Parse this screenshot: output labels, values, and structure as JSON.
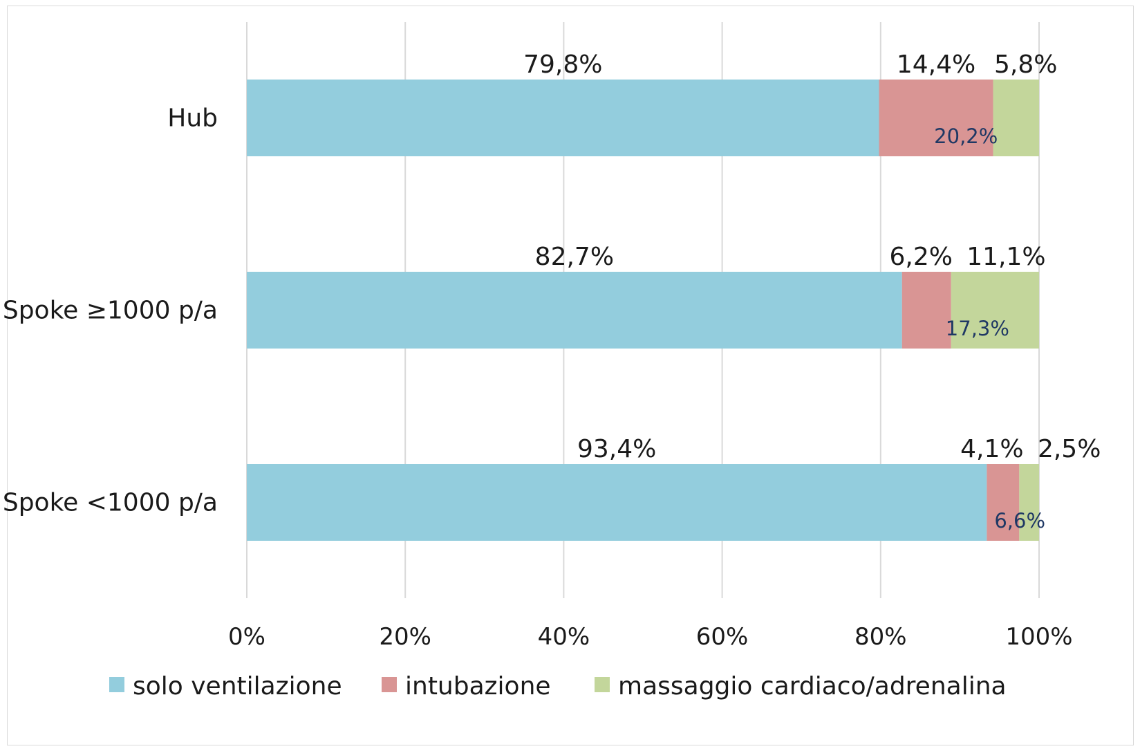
{
  "chart_data": {
    "type": "bar",
    "orientation": "horizontal",
    "stacked": true,
    "xlim": [
      0,
      100
    ],
    "x_ticks": [
      "0%",
      "20%",
      "40%",
      "60%",
      "80%",
      "100%"
    ],
    "grid": "vertical",
    "legend_position": "bottom",
    "categories": [
      "Hub",
      "Spoke ≥1000 p/a",
      "Spoke <1000 p/a"
    ],
    "series": [
      {
        "name": "solo ventilazione",
        "color": "#93CDDD",
        "values": [
          79.8,
          82.7,
          93.4
        ],
        "labels": [
          "79,8%",
          "82,7%",
          "93,4%"
        ]
      },
      {
        "name": "intubazione",
        "color": "#D99594",
        "values": [
          14.4,
          6.2,
          4.1
        ],
        "labels": [
          "14,4%",
          "6,2%",
          "4,1%"
        ]
      },
      {
        "name": "massaggio cardiaco/adrenalina",
        "color": "#C3D69B",
        "values": [
          5.8,
          11.1,
          2.5
        ],
        "labels": [
          "5,8%",
          "11,1%",
          "2,5%"
        ]
      }
    ],
    "combined_labels": [
      "20,2%",
      "17,3%",
      "6,6%"
    ],
    "combined_label_color": "#1F3864"
  }
}
